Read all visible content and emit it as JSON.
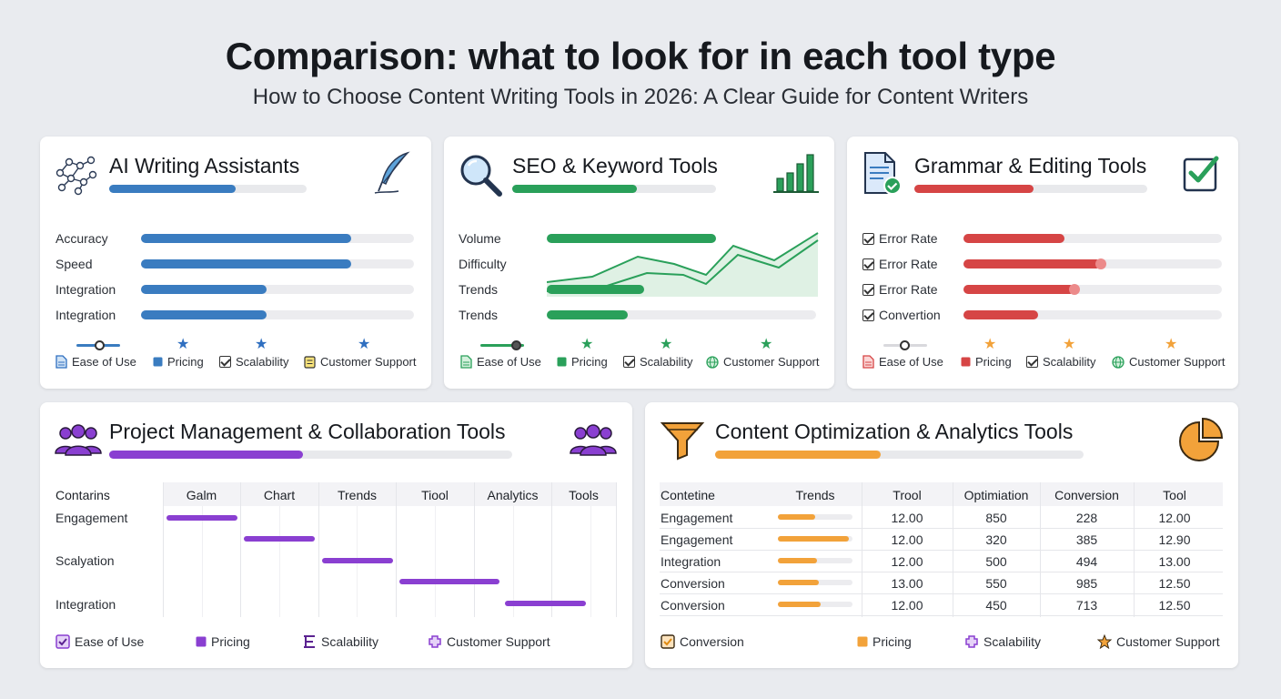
{
  "title": "Comparison: what to look for in each tool type",
  "subtitle": "How to Choose Content Writing Tools in 2026: A Clear Guide for Content Writers",
  "colors": {
    "blue": "#3a7cc0",
    "green": "#2aa05a",
    "red": "#d64545",
    "purple": "#8a3fd1",
    "orange": "#f2a23a"
  },
  "ai": {
    "title": "AI Writing Assistants",
    "header_progress": 0.64,
    "rows": [
      {
        "label": "Accuracy",
        "value": 0.77
      },
      {
        "label": "Speed",
        "value": 0.77
      },
      {
        "label": "Integration",
        "value": 0.46
      },
      {
        "label": "Integration",
        "value": 0.46
      }
    ],
    "footer": [
      "Ease of Use",
      "Pricing",
      "Scalability",
      "Customer Support"
    ]
  },
  "seo": {
    "title": "SEO & Keyword Tools",
    "header_progress": 0.61,
    "rows": [
      {
        "label": "Volume",
        "value": 0.63
      },
      {
        "label": "Difficulty",
        "value": 0.0
      },
      {
        "label": "Trends",
        "value": 0.36
      },
      {
        "label": "Trends",
        "value": 0.3
      }
    ],
    "footer": [
      "Ease of Use",
      "Pricing",
      "Scalability",
      "Customer Support"
    ]
  },
  "grammar": {
    "title": "Grammar & Editing Tools",
    "header_progress": 0.51,
    "rows": [
      {
        "label": "Error Rate",
        "value": 0.39
      },
      {
        "label": "Error Rate",
        "value": 0.53
      },
      {
        "label": "Error Rate",
        "value": 0.43
      },
      {
        "label": "Convertion",
        "value": 0.29
      }
    ],
    "footer": [
      "Ease of Use",
      "Pricing",
      "Scalability",
      "Customer Support"
    ]
  },
  "pm": {
    "title": "Project Management & Collaboration Tools",
    "header_progress": 0.48,
    "row_header": "Contarins",
    "columns": [
      "Galm",
      "Chart",
      "Trends",
      "Tiool",
      "Analytics",
      "Tools"
    ],
    "rows": [
      "Engagement",
      "Scalyation",
      "Integration"
    ],
    "footer": [
      "Ease of Use",
      "Pricing",
      "Scalability",
      "Customer Support"
    ]
  },
  "opt": {
    "title": "Content Optimization & Analytics Tools",
    "header_progress": 0.45,
    "columns": [
      "Contetine",
      "Trends",
      "Trool",
      "Optimiation",
      "Conversion",
      "Tool"
    ],
    "rows": [
      {
        "label": "Engagement",
        "trend": 0.5,
        "c1": "12.00",
        "c2": "850",
        "c3": "228",
        "c4": "12.00"
      },
      {
        "label": "Engagement",
        "trend": 0.95,
        "c1": "12.00",
        "c2": "320",
        "c3": "385",
        "c4": "12.90"
      },
      {
        "label": "Integration",
        "trend": 0.52,
        "c1": "12.00",
        "c2": "500",
        "c3": "494",
        "c4": "13.00"
      },
      {
        "label": "Conversion",
        "trend": 0.55,
        "c1": "13.00",
        "c2": "550",
        "c3": "985",
        "c4": "12.50"
      },
      {
        "label": "Conversion",
        "trend": 0.57,
        "c1": "12.00",
        "c2": "450",
        "c3": "713",
        "c4": "12.50"
      }
    ],
    "footer": [
      "Conversion",
      "Pricing",
      "Scalability",
      "Customer Support"
    ]
  }
}
